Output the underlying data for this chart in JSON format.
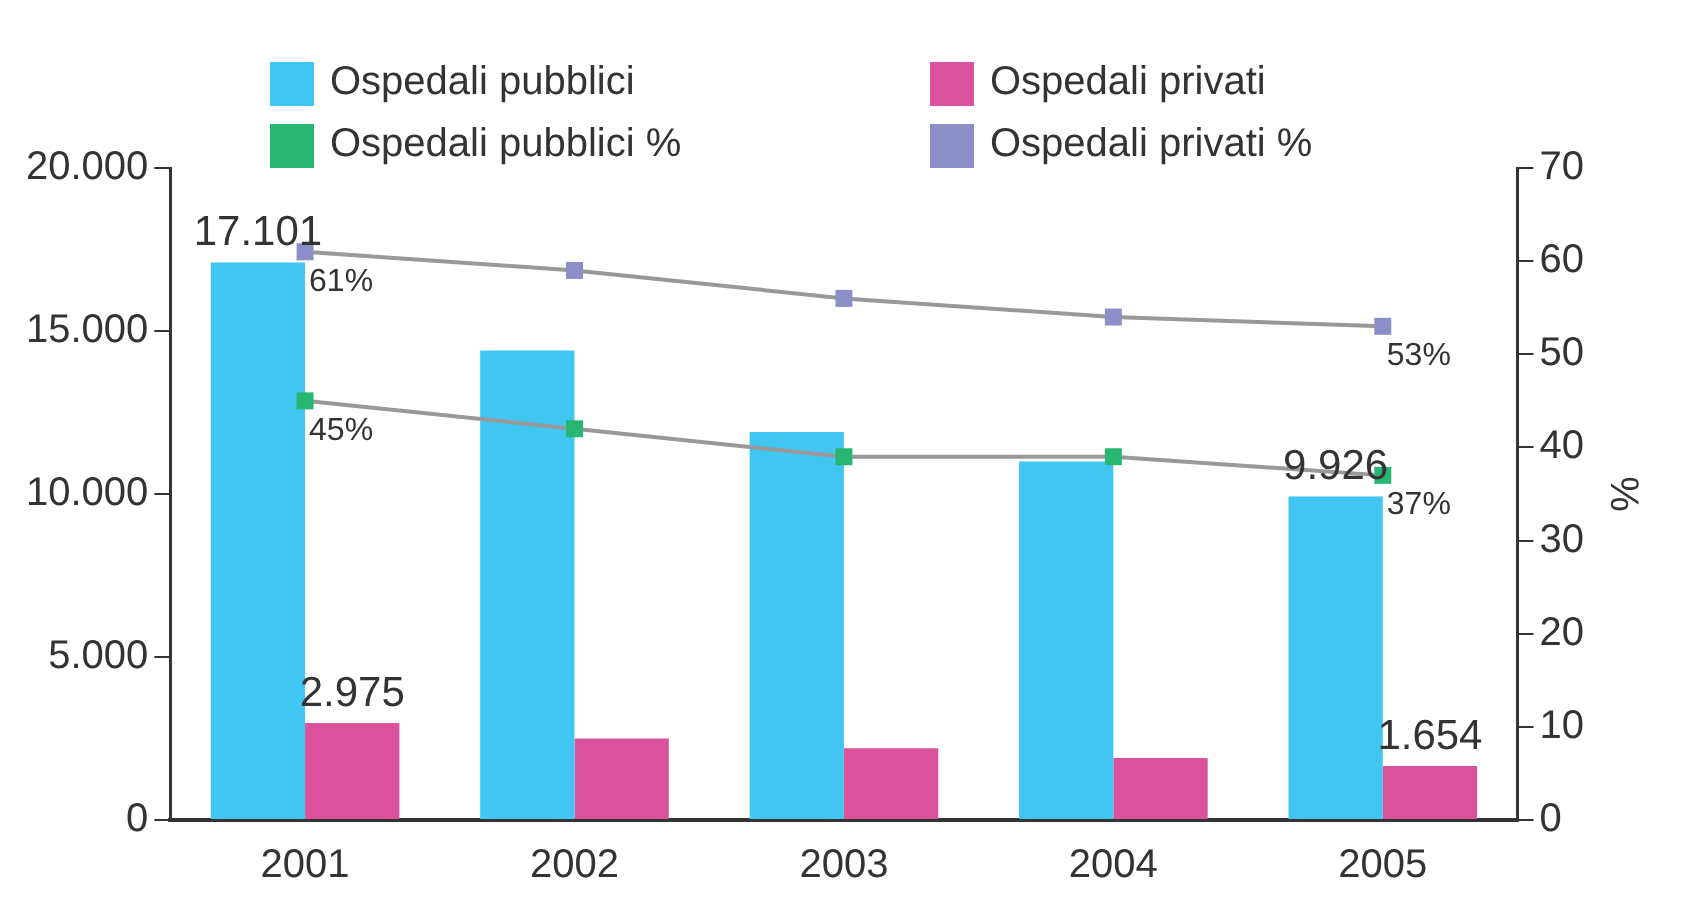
{
  "chart_data": {
    "type": "bar",
    "categories": [
      "2001",
      "2002",
      "2003",
      "2004",
      "2005"
    ],
    "series": [
      {
        "name": "Ospedali pubblici",
        "color": "#41c6f2",
        "values": [
          17101,
          14400,
          11900,
          11000,
          9926
        ],
        "value_labels": [
          "17.101",
          null,
          null,
          null,
          "9.926"
        ]
      },
      {
        "name": "Ospedali privati",
        "color": "#da529c",
        "values": [
          2975,
          2500,
          2200,
          1900,
          1654
        ],
        "value_labels": [
          "2.975",
          null,
          null,
          null,
          "1.654"
        ]
      },
      {
        "name": "Ospedali pubblici %",
        "type": "line",
        "axis": "y2",
        "color": "#28b673",
        "values": [
          45,
          42,
          39,
          39,
          37
        ],
        "value_labels": [
          "45%",
          null,
          null,
          null,
          "37%"
        ]
      },
      {
        "name": "Ospedali privati %",
        "type": "line",
        "axis": "y2",
        "color": "#8a8fc7",
        "values": [
          61,
          59,
          56,
          54,
          53
        ],
        "value_labels": [
          "61%",
          null,
          null,
          null,
          "53%"
        ]
      }
    ],
    "ylim": [
      0,
      20000
    ],
    "yticks": [
      0,
      {
        "value": 5000,
        "label": "5.000"
      },
      {
        "value": 10000,
        "label": "10.000"
      },
      {
        "value": 15000,
        "label": "15.000"
      },
      {
        "value": 20000,
        "label": "20.000"
      }
    ],
    "y2lim": [
      0,
      70
    ],
    "y2ticks": [
      0,
      10,
      20,
      30,
      40,
      50,
      60,
      70
    ],
    "y2label": "%",
    "legend": "top",
    "grid": false,
    "marker": "square",
    "line_style": "solid"
  }
}
